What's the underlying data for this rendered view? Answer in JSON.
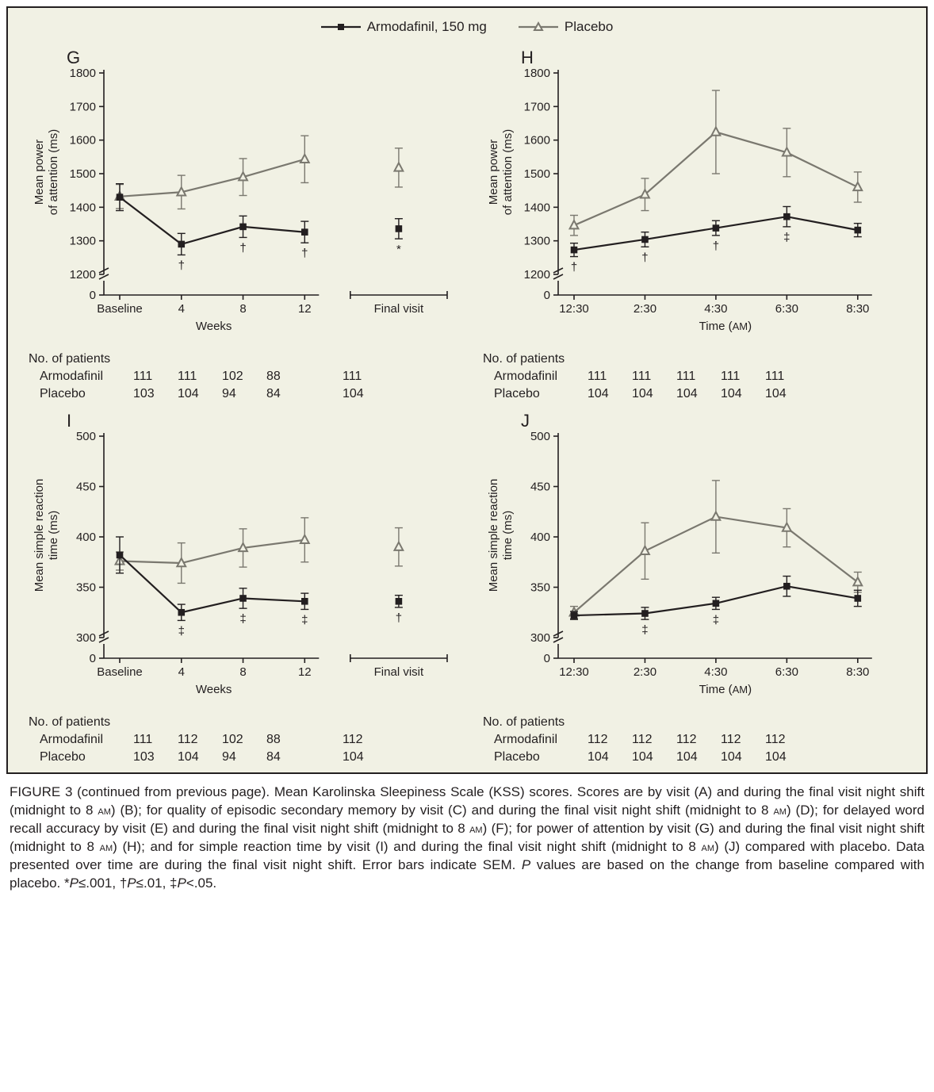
{
  "legend": {
    "series1_label": "Armodafinil, 150 mg",
    "series2_label": "Placebo",
    "series1_color": "#231f20",
    "series2_color": "#7a786f",
    "series1_marker": "square",
    "series2_marker": "triangle",
    "line_width": 2.2
  },
  "background_color": "#f1f1e4",
  "axis_color": "#231f20",
  "text_color": "#231f20",
  "panel_letter_fontsize": 22,
  "tick_fontsize": 15,
  "axis_label_fontsize": 15,
  "panels": {
    "G": {
      "letter": "G",
      "ylabel_line1": "Mean power",
      "ylabel_line2": "of attention (ms)",
      "ylim": [
        1200,
        1800
      ],
      "ytick_step": 100,
      "xlabel": "Weeks",
      "x_categories": [
        "Baseline",
        "4",
        "8",
        "12"
      ],
      "extra_categories": [
        "Final visit"
      ],
      "series": {
        "armodafinil": {
          "values": [
            1430,
            1290,
            1342,
            1326
          ],
          "errors": [
            40,
            32,
            32,
            32
          ],
          "sigs": [
            "",
            "†",
            "†",
            "†"
          ],
          "extra_values": [
            1336
          ],
          "extra_errors": [
            30
          ],
          "extra_sigs": [
            "*"
          ]
        },
        "placebo": {
          "values": [
            1432,
            1445,
            1490,
            1543
          ],
          "errors": [
            36,
            50,
            55,
            70
          ],
          "extra_values": [
            1518
          ],
          "extra_errors": [
            58
          ]
        }
      },
      "n_header": "No. of patients",
      "n_rows": [
        {
          "label": "Armodafinil",
          "vals": [
            "111",
            "111",
            "102",
            "88"
          ],
          "extra": [
            "111"
          ]
        },
        {
          "label": "Placebo",
          "vals": [
            "103",
            "104",
            "94",
            "84"
          ],
          "extra": [
            "104"
          ]
        }
      ]
    },
    "H": {
      "letter": "H",
      "ylabel_line1": "Mean power",
      "ylabel_line2": "of attention (ms)",
      "ylim": [
        1200,
        1800
      ],
      "ytick_step": 100,
      "xlabel": "Time (AM)",
      "x_categories": [
        "12:30",
        "2:30",
        "4:30",
        "6:30",
        "8:30"
      ],
      "series": {
        "armodafinil": {
          "values": [
            1273,
            1304,
            1338,
            1372,
            1332
          ],
          "errors": [
            20,
            22,
            22,
            30,
            20
          ],
          "sigs": [
            "†",
            "†",
            "†",
            "‡",
            ""
          ]
        },
        "placebo": {
          "values": [
            1346,
            1438,
            1624,
            1563,
            1460
          ],
          "errors": [
            30,
            48,
            124,
            72,
            45
          ]
        }
      },
      "n_header": "No. of patients",
      "n_rows": [
        {
          "label": "Armodafinil",
          "vals": [
            "111",
            "111",
            "111",
            "111",
            "111"
          ]
        },
        {
          "label": "Placebo",
          "vals": [
            "104",
            "104",
            "104",
            "104",
            "104"
          ]
        }
      ]
    },
    "I": {
      "letter": "I",
      "ylabel_line1": "Mean simple reaction",
      "ylabel_line2": "time (ms)",
      "ylim": [
        300,
        500
      ],
      "ytick_step": 50,
      "xlabel": "Weeks",
      "x_categories": [
        "Baseline",
        "4",
        "8",
        "12"
      ],
      "extra_categories": [
        "Final visit"
      ],
      "series": {
        "armodafinil": {
          "values": [
            382,
            325,
            339,
            336
          ],
          "errors": [
            18,
            8,
            10,
            8
          ],
          "sigs": [
            "",
            "‡",
            "‡",
            "‡"
          ],
          "extra_values": [
            336
          ],
          "extra_errors": [
            6
          ],
          "extra_sigs": [
            "†"
          ]
        },
        "placebo": {
          "values": [
            376,
            374,
            389,
            397
          ],
          "errors": [
            9,
            20,
            19,
            22
          ],
          "extra_values": [
            390
          ],
          "extra_errors": [
            19
          ]
        }
      },
      "n_header": "No. of patients",
      "n_rows": [
        {
          "label": "Armodafinil",
          "vals": [
            "111",
            "112",
            "102",
            "88"
          ],
          "extra": [
            "112"
          ]
        },
        {
          "label": "Placebo",
          "vals": [
            "103",
            "104",
            "94",
            "84"
          ],
          "extra": [
            "104"
          ]
        }
      ]
    },
    "J": {
      "letter": "J",
      "ylabel_line1": "Mean simple reaction",
      "ylabel_line2": "time (ms)",
      "ylim": [
        300,
        500
      ],
      "ytick_step": 50,
      "xlabel": "Time (AM)",
      "x_categories": [
        "12:30",
        "2:30",
        "4:30",
        "6:30",
        "8:30"
      ],
      "series": {
        "armodafinil": {
          "values": [
            322,
            324,
            334,
            351,
            339
          ],
          "errors": [
            4,
            6,
            6,
            10,
            8
          ],
          "sigs": [
            "",
            "‡",
            "‡",
            "",
            ""
          ]
        },
        "placebo": {
          "values": [
            325,
            386,
            420,
            409,
            355
          ],
          "errors": [
            6,
            28,
            36,
            19,
            10
          ]
        }
      },
      "n_header": "No. of patients",
      "n_rows": [
        {
          "label": "Armodafinil",
          "vals": [
            "112",
            "112",
            "112",
            "112",
            "112"
          ]
        },
        {
          "label": "Placebo",
          "vals": [
            "104",
            "104",
            "104",
            "104",
            "104"
          ]
        }
      ]
    }
  },
  "caption": {
    "prefix": "FIGURE 3 (continued from previous page).",
    "body": " Mean Karolinska Sleepiness Scale (KSS) scores. Scores are by visit (A) and during the final visit night shift (midnight to 8 AM) (B); for quality of episodic secondary memory by visit (C) and during the final visit night shift (midnight to 8 AM) (D); for delayed word recall accuracy by visit (E) and during the final visit night shift (midnight to 8 AM) (F); for power of attention by visit (G) and during the final visit night shift (midnight to 8 AM) (H); and for simple reaction time by visit (I) and during the final visit night shift (midnight to 8 AM) (J) compared with placebo. Data presented over time are during the final visit night shift. Error bars indicate SEM. P values are based on the change from baseline compared with placebo. *P≤.001, †P≤.01, ‡P<.05."
  },
  "marker_size": 6,
  "error_cap": 5
}
